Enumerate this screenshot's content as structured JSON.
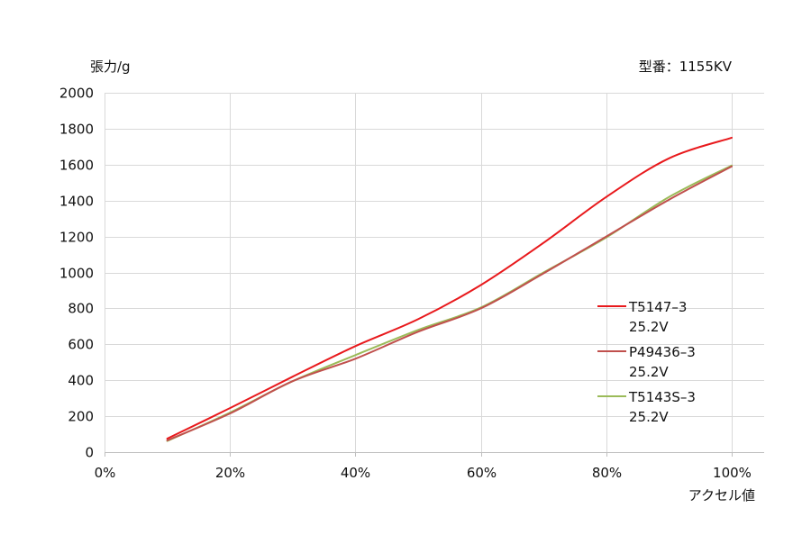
{
  "chart_data": {
    "type": "line",
    "title": "",
    "ylabel": "張力/g",
    "xlabel": "アクセル値",
    "annotation": "型番：1155KV",
    "xlim": [
      0,
      100
    ],
    "ylim": [
      0,
      2000
    ],
    "x_ticks": [
      0,
      20,
      40,
      60,
      80,
      100
    ],
    "x_tick_labels": [
      "0%",
      "20%",
      "40%",
      "60%",
      "80%",
      "100%"
    ],
    "y_ticks": [
      0,
      200,
      400,
      600,
      800,
      1000,
      1200,
      1400,
      1600,
      1800,
      2000
    ],
    "grid": true,
    "legend_position": "right",
    "x": [
      10,
      20,
      30,
      40,
      50,
      60,
      70,
      80,
      90,
      100
    ],
    "series": [
      {
        "name_lines": [
          "T5147–3",
          "25.2V"
        ],
        "color": "#e8191c",
        "values": [
          75,
          245,
          420,
          590,
          740,
          930,
          1165,
          1420,
          1635,
          1750
        ]
      },
      {
        "name_lines": [
          "P49436–3",
          "25.2V"
        ],
        "color": "#c0504d",
        "values": [
          65,
          215,
          395,
          520,
          670,
          800,
          995,
          1200,
          1405,
          1590
        ]
      },
      {
        "name_lines": [
          "T5143S–3",
          "25.2V"
        ],
        "color": "#9bbb59",
        "values": [
          62,
          220,
          395,
          540,
          680,
          805,
          1000,
          1195,
          1420,
          1595
        ]
      }
    ]
  }
}
